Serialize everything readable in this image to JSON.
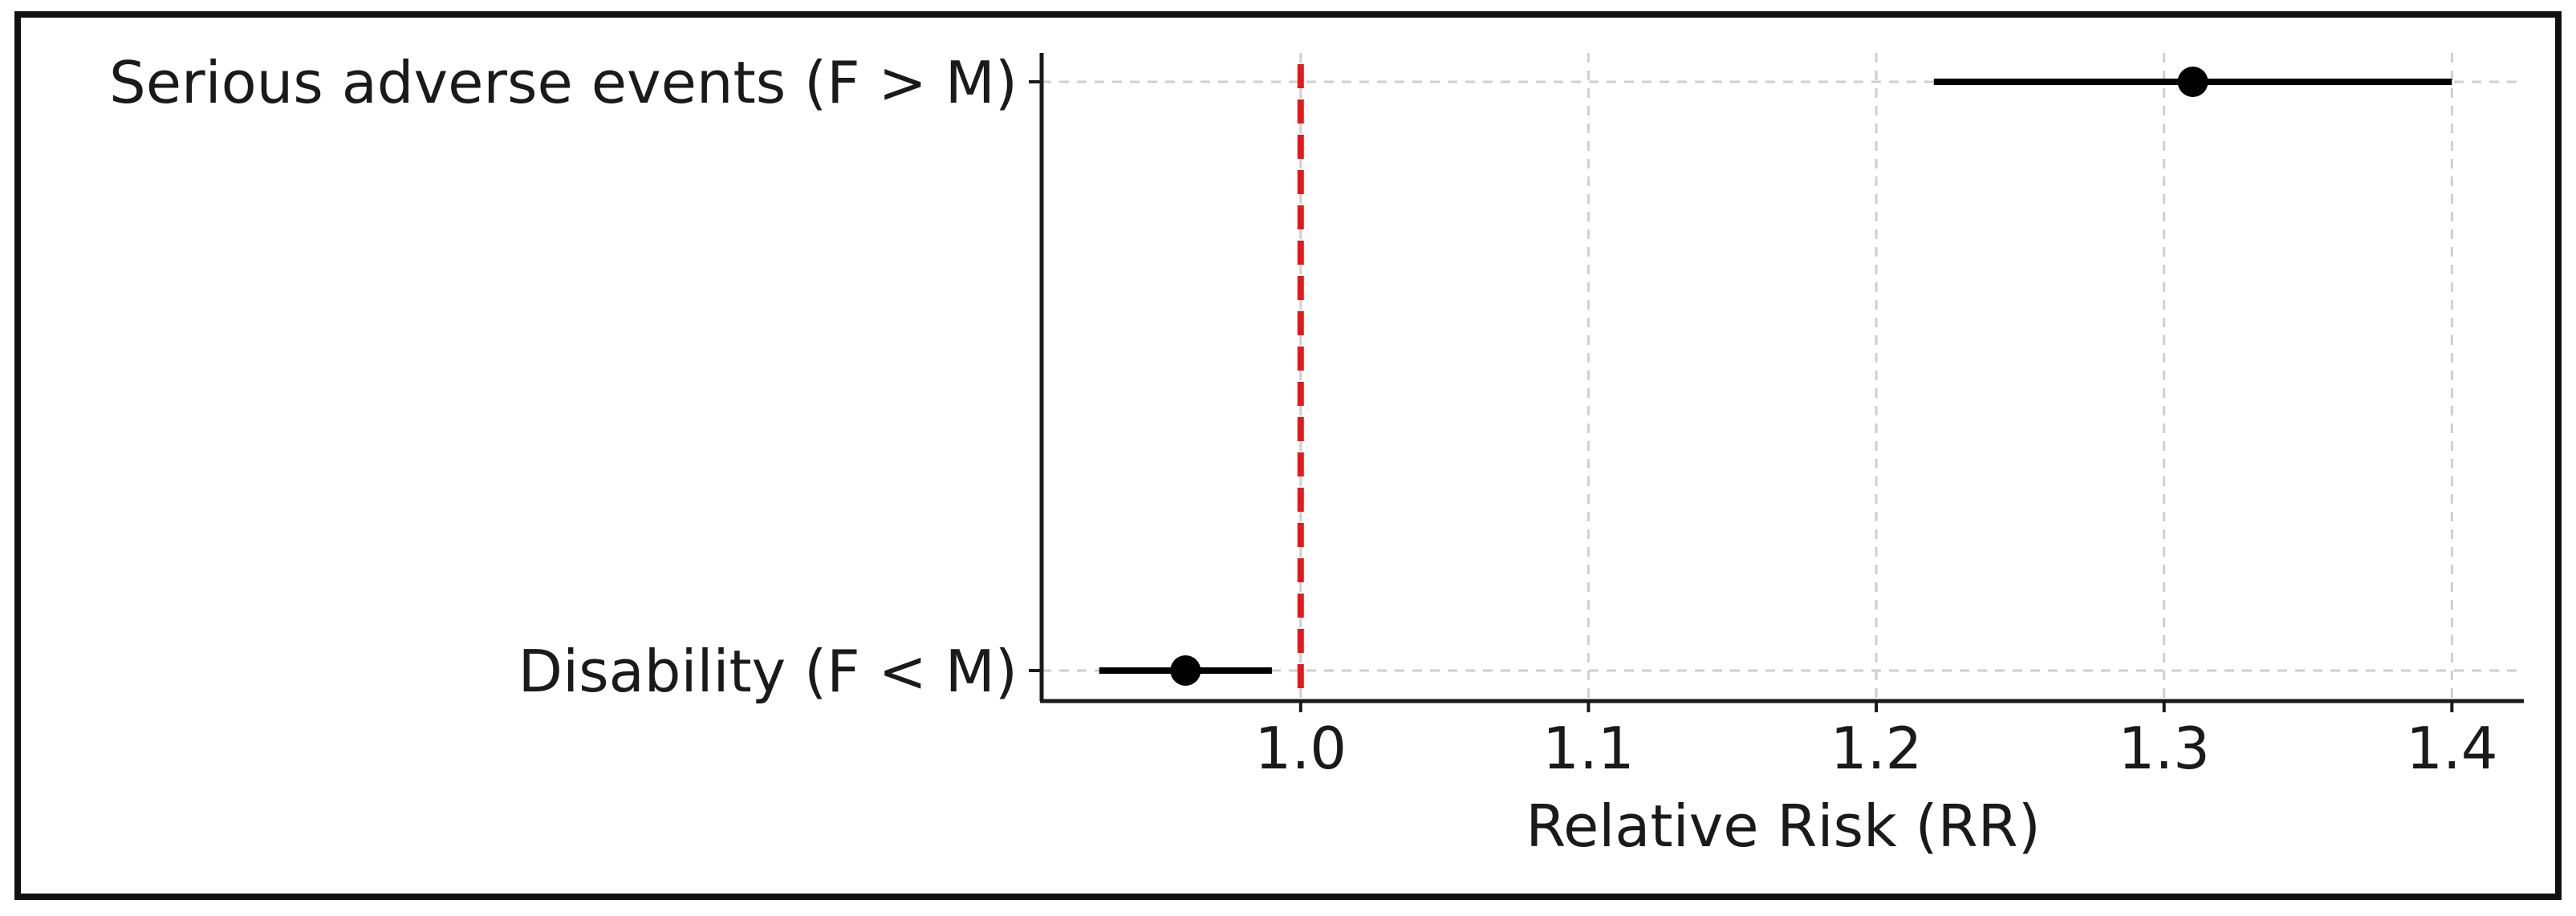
{
  "chart_data": {
    "type": "scatter",
    "subtype": "forest-plot",
    "title": "",
    "xlabel": "Relative Risk (RR)",
    "ylabel": "",
    "xlim": [
      0.91,
      1.425
    ],
    "xticks": [
      1.0,
      1.1,
      1.2,
      1.3,
      1.4
    ],
    "xtick_labels": [
      "1.0",
      "1.1",
      "1.2",
      "1.3",
      "1.4"
    ],
    "grid": true,
    "reference_line": {
      "x": 1.0,
      "color": "#e31a1c",
      "style": "dashed"
    },
    "marker_color": "#000000",
    "series": [
      {
        "values": [
          {
            "label": "Serious adverse events (F > M)",
            "estimate": 1.31,
            "ci_low": 1.22,
            "ci_high": 1.4
          },
          {
            "label": "Disability (F < M)",
            "estimate": 0.96,
            "ci_low": 0.93,
            "ci_high": 0.99
          }
        ]
      }
    ]
  }
}
